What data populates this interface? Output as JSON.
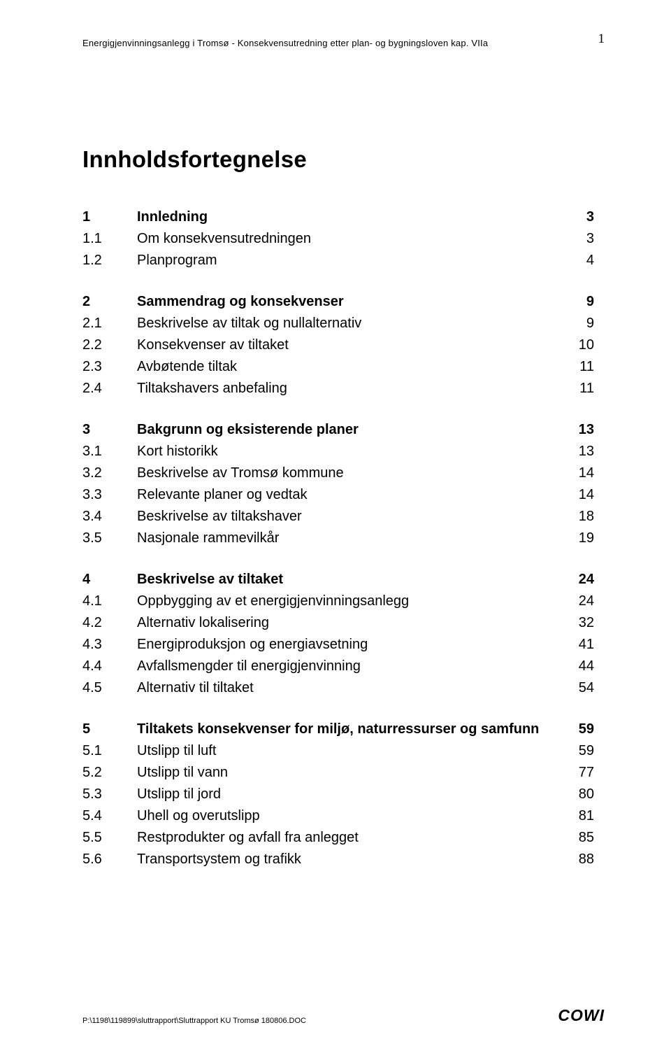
{
  "header": {
    "running_title": "Energigjenvinningsanlegg i Tromsø - Konsekvensutredning etter plan- og bygningsloven kap. VIIa",
    "page_number": "1"
  },
  "toc": {
    "title": "Innholdsfortegnelse",
    "groups": [
      [
        {
          "num": "1",
          "label": "Innledning",
          "page": "3",
          "level": 1
        },
        {
          "num": "1.1",
          "label": "Om konsekvensutredningen",
          "page": "3",
          "level": 2
        },
        {
          "num": "1.2",
          "label": "Planprogram",
          "page": "4",
          "level": 2
        }
      ],
      [
        {
          "num": "2",
          "label": "Sammendrag og konsekvenser",
          "page": "9",
          "level": 1
        },
        {
          "num": "2.1",
          "label": "Beskrivelse av tiltak og nullalternativ",
          "page": "9",
          "level": 2
        },
        {
          "num": "2.2",
          "label": "Konsekvenser av tiltaket",
          "page": "10",
          "level": 2
        },
        {
          "num": "2.3",
          "label": "Avbøtende tiltak",
          "page": "11",
          "level": 2
        },
        {
          "num": "2.4",
          "label": "Tiltakshavers anbefaling",
          "page": "11",
          "level": 2
        }
      ],
      [
        {
          "num": "3",
          "label": "Bakgrunn og eksisterende planer",
          "page": "13",
          "level": 1
        },
        {
          "num": "3.1",
          "label": "Kort historikk",
          "page": "13",
          "level": 2
        },
        {
          "num": "3.2",
          "label": "Beskrivelse av Tromsø kommune",
          "page": "14",
          "level": 2
        },
        {
          "num": "3.3",
          "label": "Relevante planer og vedtak",
          "page": "14",
          "level": 2
        },
        {
          "num": "3.4",
          "label": "Beskrivelse av tiltakshaver",
          "page": "18",
          "level": 2
        },
        {
          "num": "3.5",
          "label": "Nasjonale rammevilkår",
          "page": "19",
          "level": 2
        }
      ],
      [
        {
          "num": "4",
          "label": "Beskrivelse av tiltaket",
          "page": "24",
          "level": 1
        },
        {
          "num": "4.1",
          "label": "Oppbygging av et energigjenvinningsanlegg",
          "page": "24",
          "level": 2
        },
        {
          "num": "4.2",
          "label": "Alternativ lokalisering",
          "page": "32",
          "level": 2
        },
        {
          "num": "4.3",
          "label": "Energiproduksjon og energiavsetning",
          "page": "41",
          "level": 2
        },
        {
          "num": "4.4",
          "label": "Avfallsmengder til energigjenvinning",
          "page": "44",
          "level": 2
        },
        {
          "num": "4.5",
          "label": "Alternativ til tiltaket",
          "page": "54",
          "level": 2
        }
      ],
      [
        {
          "num": "5",
          "label": "Tiltakets konsekvenser for miljø, naturressurser og samfunn",
          "page": "59",
          "level": 1
        },
        {
          "num": "5.1",
          "label": "Utslipp til luft",
          "page": "59",
          "level": 2
        },
        {
          "num": "5.2",
          "label": "Utslipp til vann",
          "page": "77",
          "level": 2
        },
        {
          "num": "5.3",
          "label": "Utslipp til jord",
          "page": "80",
          "level": 2
        },
        {
          "num": "5.4",
          "label": "Uhell og overutslipp",
          "page": "81",
          "level": 2
        },
        {
          "num": "5.5",
          "label": "Restprodukter og avfall fra anlegget",
          "page": "85",
          "level": 2
        },
        {
          "num": "5.6",
          "label": "Transportsystem og trafikk",
          "page": "88",
          "level": 2
        }
      ]
    ]
  },
  "footer": {
    "path": "P:\\1198\\119899\\sluttrapport\\Sluttrapport KU Tromsø 180806.DOC",
    "logo_text": "COWI"
  }
}
